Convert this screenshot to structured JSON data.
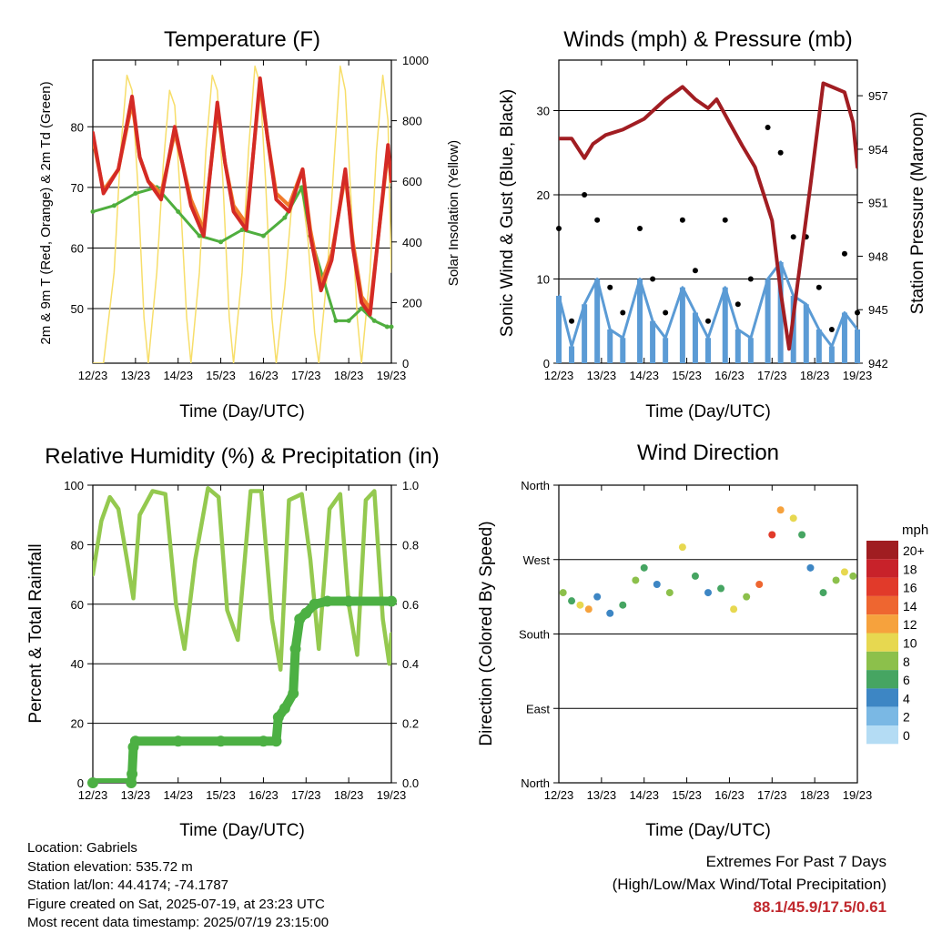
{
  "panels": {
    "temperature": {
      "title": "Temperature (F)",
      "ylabel_left": "2m & 9m T (Red, Orange) & 2m Td (Green)",
      "ylabel_right": "Solar Insolation (Yellow)",
      "xlabel": "Time (Day/UTC)"
    },
    "winds": {
      "title": "Winds (mph) & Pressure (mb)",
      "ylabel_left": "Sonic Wind & Gust (Blue, Black)",
      "ylabel_right": "Station Pressure (Maroon)",
      "xlabel": "Time (Day/UTC)"
    },
    "humidity": {
      "title": "Relative Humidity (%) & Precipitation (in)",
      "ylabel_left": "Percent & Total Rainfall",
      "xlabel": "Time (Day/UTC)"
    },
    "direction": {
      "title": "Wind Direction",
      "ylabel_left": "Direction (Colored By Speed)",
      "xlabel": "Time (Day/UTC)"
    }
  },
  "legend": {
    "unit": "mph",
    "labels": [
      "20+",
      "18",
      "16",
      "14",
      "12",
      "10",
      "8",
      "6",
      "4",
      "2",
      "0"
    ],
    "colors": [
      "#a01d21",
      "#c8222a",
      "#e13a2a",
      "#ee6630",
      "#f6a23d",
      "#e7d850",
      "#8cc04b",
      "#46a562",
      "#3d86c4",
      "#7ab8e4",
      "#b4dcf4"
    ]
  },
  "colors": {
    "temp2m": "#d42a25",
    "temp9m": "#f07b2b",
    "dewpoint": "#4fae3e",
    "solar": "#f7de6a",
    "wind": "#5b9bd5",
    "gust": "#000000",
    "pressure": "#a11d22",
    "rh": "#94c94f",
    "precip": "#4cb043"
  },
  "chart_data": [
    {
      "type": "line",
      "title": "Temperature (F)",
      "xlabel": "Time (Day/UTC)",
      "ylabel": "2m & 9m T (Red, Orange) & 2m Td (Green)",
      "ylabel_right": "Solar Insolation (Yellow)",
      "x_ticks": [
        "12/23",
        "13/23",
        "14/23",
        "15/23",
        "16/23",
        "17/23",
        "18/23",
        "19/23"
      ],
      "xlim": [
        0,
        7
      ],
      "ylim": [
        41,
        91
      ],
      "y_ticks": [
        50,
        60,
        70,
        80
      ],
      "ylim_right": [
        0,
        1000
      ],
      "y_ticks_right": [
        0,
        200,
        400,
        600,
        800,
        1000
      ],
      "series": [
        {
          "name": "2m T",
          "x": [
            0,
            0.25,
            0.6,
            0.92,
            1.1,
            1.3,
            1.6,
            1.92,
            2.1,
            2.3,
            2.6,
            2.92,
            3.1,
            3.3,
            3.6,
            3.92,
            4.1,
            4.3,
            4.6,
            4.92,
            5.1,
            5.35,
            5.6,
            5.92,
            6.1,
            6.3,
            6.5,
            6.92,
            7
          ],
          "y": [
            79,
            69,
            73,
            85,
            75,
            71,
            68,
            80,
            74,
            67,
            62,
            84,
            74,
            66,
            63,
            88,
            78,
            68,
            66,
            73,
            62,
            53,
            58,
            73,
            60,
            51,
            49,
            77,
            71
          ]
        },
        {
          "name": "9m T",
          "x": [
            0,
            0.25,
            0.6,
            0.92,
            1.1,
            1.3,
            1.6,
            1.92,
            2.1,
            2.3,
            2.6,
            2.92,
            3.1,
            3.3,
            3.6,
            3.92,
            4.1,
            4.3,
            4.6,
            4.92,
            5.1,
            5.35,
            5.6,
            5.92,
            6.1,
            6.3,
            6.5,
            6.92,
            7
          ],
          "y": [
            78,
            69.5,
            73,
            84,
            75,
            71,
            69,
            79,
            74,
            68,
            63,
            83,
            74,
            67,
            64,
            87,
            78,
            69,
            67,
            73,
            63,
            54,
            59,
            72,
            61,
            52,
            50,
            76,
            71
          ]
        },
        {
          "name": "2m Td",
          "x": [
            0,
            0.5,
            1,
            1.5,
            2,
            2.5,
            3,
            3.5,
            4,
            4.5,
            4.9,
            5.1,
            5.4,
            5.7,
            6,
            6.3,
            6.6,
            6.9,
            7
          ],
          "y": [
            66,
            67,
            69,
            70,
            66,
            62,
            61,
            63,
            62,
            65,
            70,
            62,
            55,
            48,
            48,
            50,
            48,
            47,
            47
          ]
        },
        {
          "name": "Solar",
          "axis": "right",
          "x": [
            0,
            0.25,
            0.5,
            0.65,
            0.8,
            0.92,
            1.05,
            1.2,
            1.3,
            1.5,
            1.65,
            1.8,
            1.92,
            2.05,
            2.2,
            2.3,
            2.5,
            2.65,
            2.8,
            2.92,
            3.05,
            3.2,
            3.3,
            3.5,
            3.65,
            3.8,
            3.92,
            4.05,
            4.2,
            4.3,
            4.5,
            4.65,
            4.8,
            4.92,
            5.05,
            5.2,
            5.3,
            5.5,
            5.65,
            5.8,
            5.92,
            6.05,
            6.2,
            6.3,
            6.5,
            6.65,
            6.8,
            6.92,
            7
          ],
          "y": [
            0,
            0,
            300,
            700,
            950,
            900,
            600,
            150,
            0,
            300,
            650,
            900,
            850,
            550,
            150,
            0,
            300,
            700,
            950,
            900,
            600,
            150,
            0,
            300,
            700,
            980,
            920,
            600,
            150,
            0,
            250,
            500,
            600,
            550,
            400,
            100,
            0,
            300,
            650,
            980,
            900,
            550,
            150,
            0,
            300,
            700,
            950,
            800,
            300
          ]
        }
      ]
    },
    {
      "type": "scatter",
      "title": "Winds (mph) & Pressure (mb)",
      "xlabel": "Time (Day/UTC)",
      "ylabel": "Sonic Wind & Gust (Blue, Black)",
      "ylabel_right": "Station Pressure (Maroon)",
      "x_ticks": [
        "12/23",
        "13/23",
        "14/23",
        "15/23",
        "16/23",
        "17/23",
        "18/23",
        "19/23"
      ],
      "xlim": [
        0,
        7
      ],
      "ylim": [
        0,
        36
      ],
      "y_ticks": [
        0,
        10,
        20,
        30
      ],
      "ylim_right": [
        942,
        959
      ],
      "y_ticks_right": [
        942,
        945,
        948,
        951,
        954,
        957
      ],
      "series": [
        {
          "name": "Pressure",
          "axis": "right",
          "x": [
            0,
            0.3,
            0.6,
            0.8,
            1.1,
            1.5,
            2,
            2.5,
            2.9,
            3.2,
            3.5,
            3.7,
            4,
            4.3,
            4.6,
            4.8,
            5,
            5.2,
            5.4,
            5.6,
            5.9,
            6.2,
            6.4,
            6.7,
            6.9,
            7
          ],
          "y": [
            954.6,
            954.6,
            953.5,
            954.3,
            954.8,
            955.1,
            955.7,
            956.8,
            957.5,
            956.8,
            956.3,
            956.8,
            955.5,
            954.2,
            953.0,
            951.5,
            950.0,
            946.0,
            942.8,
            946.5,
            952.0,
            957.7,
            957.5,
            957.2,
            955.5,
            953.0
          ]
        },
        {
          "name": "Wind",
          "x": [
            0,
            0.3,
            0.6,
            0.9,
            1.2,
            1.5,
            1.9,
            2.2,
            2.5,
            2.9,
            3.2,
            3.5,
            3.9,
            4.2,
            4.5,
            4.9,
            5.2,
            5.5,
            5.8,
            6.1,
            6.4,
            6.7,
            7
          ],
          "y": [
            8,
            2,
            7,
            10,
            4,
            3,
            10,
            5,
            3,
            9,
            6,
            3,
            9,
            4,
            3,
            10,
            12,
            8,
            7,
            4,
            2,
            6,
            4
          ]
        },
        {
          "name": "Gust",
          "x": [
            0,
            0.3,
            0.6,
            0.9,
            1.2,
            1.5,
            1.9,
            2.2,
            2.5,
            2.9,
            3.2,
            3.5,
            3.9,
            4.2,
            4.5,
            4.9,
            5.2,
            5.5,
            5.8,
            6.1,
            6.4,
            6.7,
            7
          ],
          "y": [
            16,
            5,
            20,
            17,
            9,
            6,
            16,
            10,
            6,
            17,
            11,
            5,
            17,
            7,
            10,
            28,
            25,
            15,
            15,
            9,
            4,
            13,
            6
          ]
        }
      ]
    },
    {
      "type": "line",
      "title": "Relative Humidity (%) & Precipitation (in)",
      "xlabel": "Time (Day/UTC)",
      "ylabel": "Percent & Total Rainfall",
      "x_ticks": [
        "12/23",
        "13/23",
        "14/23",
        "15/23",
        "16/23",
        "17/23",
        "18/23",
        "19/23"
      ],
      "xlim": [
        0,
        7
      ],
      "ylim": [
        0,
        100
      ],
      "y_ticks": [
        0,
        20,
        40,
        60,
        80,
        100
      ],
      "ylim_right": [
        0,
        1.0
      ],
      "y_ticks_right": [
        0.0,
        0.2,
        0.4,
        0.6,
        0.8,
        1.0
      ],
      "series": [
        {
          "name": "RH",
          "x": [
            0,
            0.2,
            0.4,
            0.6,
            0.8,
            0.95,
            1.1,
            1.4,
            1.7,
            1.95,
            2.15,
            2.4,
            2.7,
            2.95,
            3.15,
            3.4,
            3.7,
            3.95,
            4.2,
            4.4,
            4.6,
            4.9,
            5.1,
            5.3,
            5.55,
            5.8,
            6.0,
            6.2,
            6.4,
            6.6,
            6.8,
            6.95,
            7
          ],
          "y": [
            70,
            88,
            96,
            92,
            75,
            62,
            90,
            98,
            97,
            60,
            45,
            75,
            99,
            96,
            58,
            48,
            98,
            98,
            55,
            38,
            95,
            97,
            75,
            45,
            92,
            97,
            60,
            43,
            95,
            98,
            55,
            40,
            50
          ]
        },
        {
          "name": "Precip",
          "axis": "right",
          "x": [
            0,
            0.9,
            0.92,
            0.95,
            1.0,
            2.0,
            3.0,
            4.0,
            4.3,
            4.35,
            4.5,
            4.7,
            4.75,
            4.85,
            5.0,
            5.2,
            5.5,
            6.0,
            7
          ],
          "y": [
            0,
            0,
            0.03,
            0.12,
            0.14,
            0.14,
            0.14,
            0.14,
            0.14,
            0.22,
            0.25,
            0.3,
            0.45,
            0.55,
            0.57,
            0.6,
            0.61,
            0.61,
            0.61
          ]
        }
      ]
    },
    {
      "type": "scatter",
      "title": "Wind Direction",
      "xlabel": "Time (Day/UTC)",
      "ylabel": "Direction (Colored By Speed)",
      "x_ticks": [
        "12/23",
        "13/23",
        "14/23",
        "15/23",
        "16/23",
        "17/23",
        "18/23",
        "19/23"
      ],
      "xlim": [
        0,
        7
      ],
      "ylim": [
        0,
        360
      ],
      "y_tick_values": [
        0,
        90,
        180,
        270,
        360
      ],
      "y_tick_labels": [
        "North",
        "East",
        "South",
        "West",
        "North"
      ],
      "series": [
        {
          "name": "Direction",
          "x": [
            0.1,
            0.3,
            0.5,
            0.7,
            0.9,
            1.2,
            1.5,
            1.8,
            2.0,
            2.3,
            2.6,
            2.9,
            3.2,
            3.5,
            3.8,
            4.1,
            4.4,
            4.7,
            5.0,
            5.2,
            5.5,
            5.7,
            5.9,
            6.2,
            6.5,
            6.7,
            6.9
          ],
          "y": [
            230,
            220,
            215,
            210,
            225,
            205,
            215,
            245,
            260,
            240,
            230,
            285,
            250,
            230,
            235,
            210,
            225,
            240,
            300,
            330,
            320,
            300,
            260,
            230,
            245,
            255,
            250
          ],
          "speed": [
            8,
            6,
            10,
            12,
            4,
            4,
            5,
            7,
            6,
            4,
            8,
            9,
            6,
            3,
            5,
            10,
            8,
            14,
            16,
            12,
            9,
            6,
            4,
            5,
            8,
            10,
            8
          ]
        }
      ]
    }
  ],
  "info": {
    "location": "Location: Gabriels",
    "elevation": "Station elevation: 535.72 m",
    "latlon": "Station lat/lon: 44.4174; -74.1787",
    "created": "Figure created on Sat, 2025-07-19, at 23:23 UTC",
    "recent": "Most recent data timestamp: 2025/07/19 23:15:00"
  },
  "extremes": {
    "title": "Extremes For Past 7 Days",
    "subtitle": "(High/Low/Max Wind/Total Precipitation)",
    "values": "88.1/45.9/17.5/0.61"
  }
}
